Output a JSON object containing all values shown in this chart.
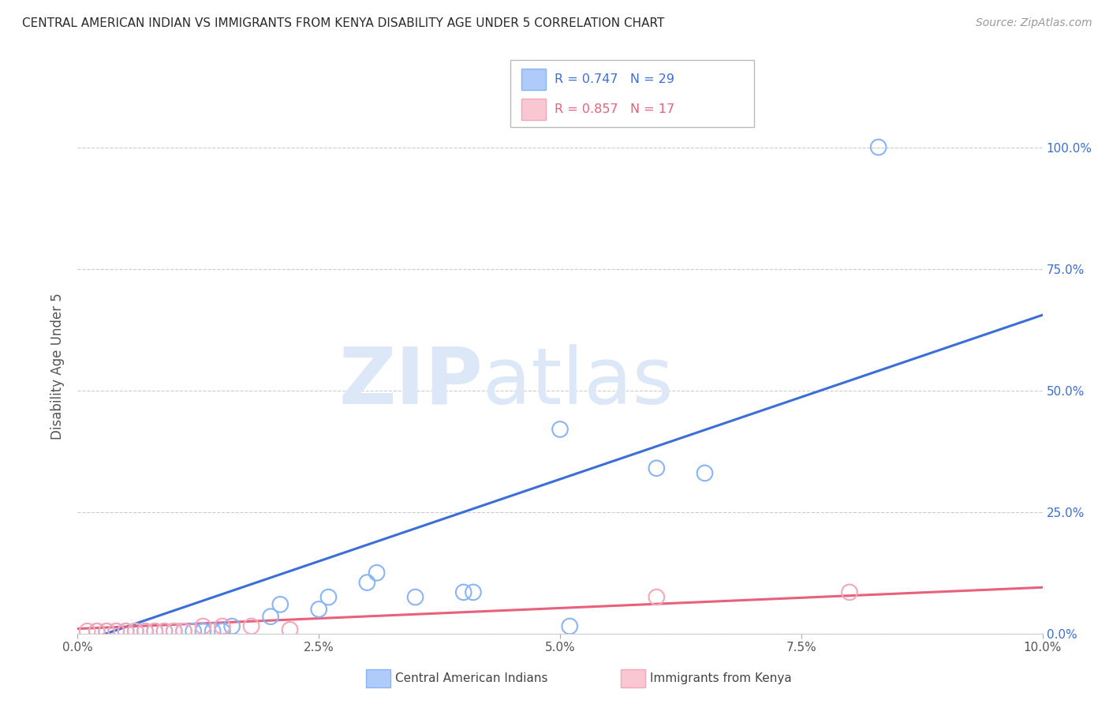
{
  "title": "CENTRAL AMERICAN INDIAN VS IMMIGRANTS FROM KENYA DISABILITY AGE UNDER 5 CORRELATION CHART",
  "source": "Source: ZipAtlas.com",
  "ylabel": "Disability Age Under 5",
  "xlim": [
    0.0,
    0.1
  ],
  "ylim": [
    0.0,
    1.1
  ],
  "xtick_labels": [
    "0.0%",
    "2.5%",
    "5.0%",
    "7.5%",
    "10.0%"
  ],
  "xtick_vals": [
    0.0,
    0.025,
    0.05,
    0.075,
    0.1
  ],
  "ytick_labels": [
    "0.0%",
    "25.0%",
    "50.0%",
    "75.0%",
    "100.0%"
  ],
  "ytick_vals": [
    0.0,
    0.25,
    0.5,
    0.75,
    1.0
  ],
  "blue_scatter_x": [
    0.002,
    0.003,
    0.004,
    0.005,
    0.006,
    0.007,
    0.008,
    0.009,
    0.01,
    0.011,
    0.012,
    0.013,
    0.014,
    0.015,
    0.016,
    0.02,
    0.021,
    0.025,
    0.026,
    0.03,
    0.031,
    0.035,
    0.04,
    0.041,
    0.05,
    0.051,
    0.06,
    0.065,
    0.083
  ],
  "blue_scatter_y": [
    0.005,
    0.005,
    0.005,
    0.005,
    0.005,
    0.005,
    0.005,
    0.005,
    0.005,
    0.005,
    0.005,
    0.005,
    0.005,
    0.005,
    0.015,
    0.035,
    0.06,
    0.05,
    0.075,
    0.105,
    0.125,
    0.075,
    0.085,
    0.085,
    0.42,
    0.015,
    0.34,
    0.33,
    1.0
  ],
  "pink_scatter_x": [
    0.001,
    0.002,
    0.003,
    0.004,
    0.005,
    0.006,
    0.007,
    0.008,
    0.009,
    0.01,
    0.011,
    0.013,
    0.015,
    0.018,
    0.022,
    0.06,
    0.08
  ],
  "pink_scatter_y": [
    0.005,
    0.005,
    0.005,
    0.005,
    0.005,
    0.005,
    0.005,
    0.005,
    0.005,
    0.005,
    0.005,
    0.015,
    0.015,
    0.015,
    0.008,
    0.075,
    0.085
  ],
  "blue_line_x": [
    0.0,
    0.1
  ],
  "blue_line_y": [
    -0.02,
    0.655
  ],
  "pink_line_x": [
    0.0,
    0.1
  ],
  "pink_line_y": [
    0.01,
    0.095
  ],
  "blue_r": "R = 0.747",
  "blue_n": "N = 29",
  "pink_r": "R = 0.857",
  "pink_n": "N = 17",
  "blue_scatter_color": "#89b4f7",
  "pink_scatter_color": "#f4a7b9",
  "blue_line_color": "#3a6fd8",
  "pink_line_color": "#e8607a",
  "legend_blue_face": "#aecbfa",
  "legend_pink_face": "#f9c7d2",
  "watermark_zip": "ZIP",
  "watermark_atlas": "atlas",
  "watermark_color": "#dce8f8",
  "legend_label_blue": "Central American Indians",
  "legend_label_pink": "Immigrants from Kenya",
  "background_color": "#ffffff",
  "grid_color": "#cccccc",
  "title_color": "#2b2b2b",
  "source_color": "#999999",
  "right_tick_color": "#3a6fd8",
  "left_label_color": "#555555"
}
